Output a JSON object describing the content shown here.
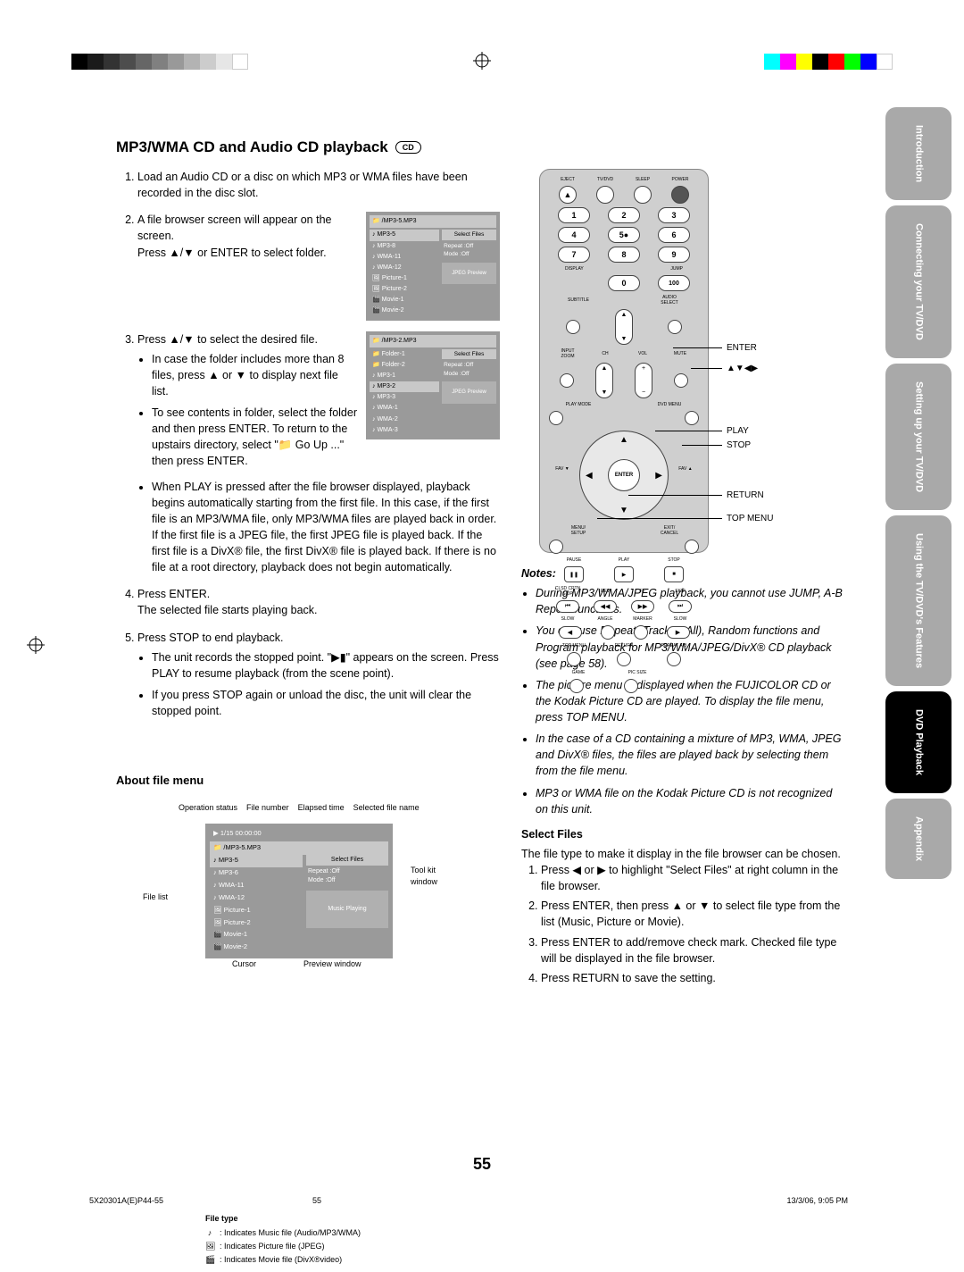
{
  "printMarks": {
    "grays": [
      "#000000",
      "#1a1a1a",
      "#333333",
      "#4d4d4d",
      "#666666",
      "#808080",
      "#999999",
      "#b3b3b3",
      "#cccccc",
      "#e6e6e6",
      "#ffffff"
    ],
    "colors": [
      "#00ffff",
      "#ff00ff",
      "#ffff00",
      "#000000",
      "#ff0000",
      "#00ff00",
      "#0000ff",
      "#ffffff"
    ]
  },
  "title": "MP3/WMA CD and Audio CD playback",
  "cdBadge": "CD",
  "steps": {
    "s1": "Load an Audio CD or a disc on which MP3 or WMA files have been recorded in the disc slot.",
    "s2a": "A file browser screen will appear on the screen.",
    "s2b": "Press ▲/▼ or ENTER to select folder.",
    "s3a": "Press ▲/▼ to select the desired file.",
    "s3b1": "In case the folder includes more than 8 files, press ▲ or ▼ to display next file list.",
    "s3b2": "To see contents in folder, select the folder and then press ENTER. To return to the upstairs directory, select \"📁 Go Up ...\" then press ENTER.",
    "s3b3": "When PLAY is pressed after the file browser displayed, playback begins automatically starting from the first file. In this case, if the first file is an MP3/WMA file, only MP3/WMA files are played back in order. If the first file is a JPEG file, the first JPEG file is played back. If the first file is a DivX® file, the first DivX® file is played back. If there is no file at a root directory, playback does not begin automatically.",
    "s4a": "Press ENTER.",
    "s4b": "The selected file starts playing back.",
    "s5a": "Press STOP to end playback.",
    "s5b1": "The unit records the stopped point. \"▶▮\" appears on the screen. Press PLAY to resume playback (from the scene point).",
    "s5b2": "If you press STOP again or unload the disc, the unit will clear the stopped point."
  },
  "browser1": {
    "header": "📁 /MP3-5.MP3",
    "items": [
      "♪ MP3-5",
      "♪ MP3-8",
      "♪ WMA-11",
      "♪ WMA-12",
      "🖼 Picture-1",
      "🖼 Picture-2",
      "🎬 Movie-1",
      "🎬 Movie-2"
    ],
    "selIndex": 0,
    "btn": "Select Files",
    "opts": [
      "Repeat   :Off",
      "Mode      :Off"
    ],
    "preview": "JPEG Preview"
  },
  "browser2": {
    "header": "📁 /MP3-2.MP3",
    "items": [
      "📁 Folder-1",
      "📁 Folder-2",
      "♪ MP3-1",
      "♪ MP3-2",
      "♪ MP3-3",
      "♪ WMA-1",
      "♪ WMA-2",
      "♪ WMA-3"
    ],
    "selIndex": 3,
    "btn": "Select Files",
    "opts": [
      "Repeat   :Off",
      "Mode      :Off"
    ],
    "preview": "JPEG Preview"
  },
  "aboutHead": "About file menu",
  "aboutLabels": {
    "opStatus": "Operation status",
    "fileNum": "File number",
    "elapsed": "Elapsed time",
    "selName": "Selected file name",
    "fileList": "File list",
    "cursor": "Cursor",
    "previewWin": "Preview window",
    "toolkit": "Tool kit window"
  },
  "aboutBox": {
    "top": "▶   1/15   00:00:00",
    "header": "📁 /MP3-5.MP3",
    "items": [
      "♪ MP3-5",
      "♪ MP3-6",
      "♪ WMA-11",
      "♪ WMA-12",
      "🖼 Picture-1",
      "🖼 Picture-2",
      "🎬 Movie-1",
      "🎬 Movie-2"
    ],
    "selIndex": 0,
    "btn": "Select Files",
    "opts": [
      "Repeat   :Off",
      "Mode      :Off"
    ],
    "preview": "Music Playing"
  },
  "fileType": {
    "head": "File type",
    "rows": [
      {
        "icon": "♪",
        "text": ": Indicates Music file (Audio/MP3/WMA)"
      },
      {
        "icon": "🖼",
        "text": ": Indicates Picture file (JPEG)"
      },
      {
        "icon": "🎬",
        "text": ": Indicates Movie file (DivX®video)"
      }
    ]
  },
  "remote": {
    "topRow": [
      "EJECT",
      "TV/DVD",
      "SLEEP",
      "POWER"
    ],
    "nums": [
      "1",
      "2",
      "3",
      "4",
      "5●",
      "6",
      "7",
      "8",
      "9",
      "0",
      "100"
    ],
    "display": "DISPLAY",
    "jump": "JUMP",
    "subtitle": "SUBTITLE",
    "audioSelect": "AUDIO SELECT",
    "inputZoom": "INPUT ZOOM",
    "ch": "CH",
    "vol": "VOL",
    "mute": "MUTE",
    "playMode": "PLAY MODE",
    "dvdMenu": "DVD MENU",
    "favMinus": "FAV ▼",
    "favPlus": "FAV ▲",
    "enter": "ENTER",
    "menuSetup": "MENU/ SETUP",
    "exitCancel": "EXIT/ CANCEL",
    "pause": "PAUSE",
    "play": "PLAY",
    "stop": "STOP",
    "ccSkip": "CLSD CPTN SKIP",
    "rev": "REV",
    "ff": "FF",
    "cc": "CLOSED CAPTION",
    "skip": "SKIP",
    "slow": "SLOW",
    "angle": "ANGLE",
    "marker": "MARKER",
    "slow2": "SLOW",
    "topMenu": "TOP MENU",
    "return": "RETURN",
    "repeatAB": "REPEAT A-B",
    "game": "GAME",
    "picSize": "PIC SIZE"
  },
  "callouts": {
    "enter": "ENTER",
    "arrows": "▲▼◀▶",
    "play": "PLAY",
    "stop": "STOP",
    "return": "RETURN",
    "topMenu": "TOP MENU"
  },
  "notesHead": "Notes:",
  "notes": [
    "During MP3/WMA/JPEG playback, you cannot use JUMP, A-B Repeat functions.",
    "You can use Repeat (Track or All), Random functions and Program playback for MP3/WMA/JPEG/DivX® CD playback (see page 58).",
    "The picture menu is displayed when the FUJICOLOR CD or the Kodak Picture CD are played. To display the file menu, press TOP MENU.",
    "In the case of a CD containing a mixture of MP3, WMA, JPEG and DivX® files, the files are played back by selecting them from the file menu.",
    "MP3 or WMA file on the Kodak Picture CD is not recognized on this unit."
  ],
  "selectFilesHead": "Select Files",
  "selectFilesIntro": "The file type to make it display in the file browser can be chosen.",
  "selectFiles": [
    "Press ◀ or ▶ to highlight \"Select Files\" at right column in the file browser.",
    "Press ENTER, then press ▲ or ▼ to select file type from the list (Music, Picture or Movie).",
    "Press ENTER to add/remove check mark. Checked file type will be displayed in the file browser.",
    "Press RETURN to save the setting."
  ],
  "tabs": [
    {
      "label": "Introduction",
      "active": false
    },
    {
      "label": "Connecting your TV/DVD",
      "active": false
    },
    {
      "label": "Setting up your TV/DVD",
      "active": false
    },
    {
      "label": "Using the TV/DVD's Features",
      "active": false
    },
    {
      "label": "DVD Playback",
      "active": true
    },
    {
      "label": "Appendix",
      "active": false
    }
  ],
  "pageNum": "55",
  "footer": {
    "left": "5X20301A(E)P44-55",
    "mid": "55",
    "right": "13/3/06, 9:05 PM"
  }
}
